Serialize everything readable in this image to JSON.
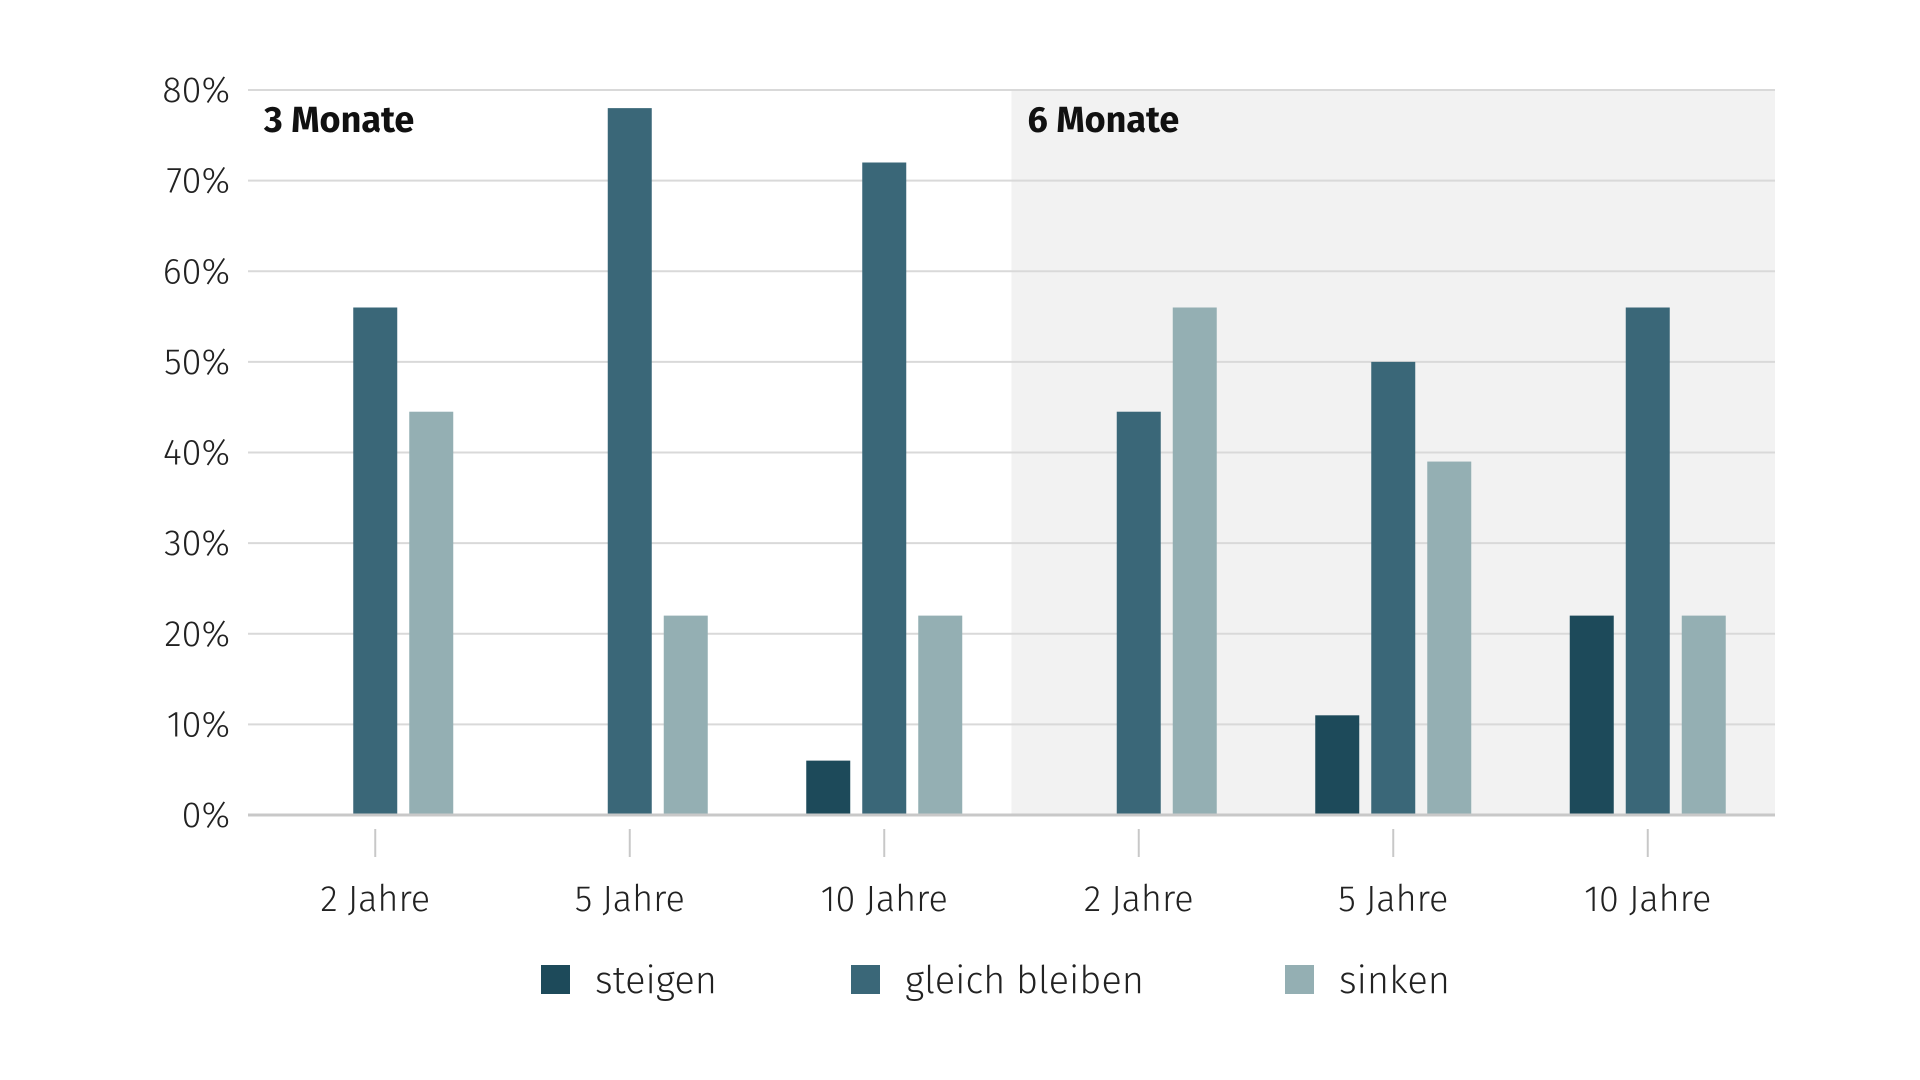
{
  "chart_data": {
    "type": "bar",
    "panels": [
      {
        "label": "3 Monate",
        "categories": [
          "2 Jahre",
          "5 Jahre",
          "10 Jahre"
        ],
        "series": [
          {
            "name": "steigen",
            "values": [
              0,
              0,
              6
            ]
          },
          {
            "name": "gleich bleiben",
            "values": [
              56,
              78,
              72
            ]
          },
          {
            "name": "sinken",
            "values": [
              44.5,
              22,
              22
            ]
          }
        ]
      },
      {
        "label": "6 Monate",
        "categories": [
          "2 Jahre",
          "5 Jahre",
          "10 Jahre"
        ],
        "series": [
          {
            "name": "steigen",
            "values": [
              0,
              11,
              22
            ]
          },
          {
            "name": "gleich bleiben",
            "values": [
              44.5,
              50,
              56
            ]
          },
          {
            "name": "sinken",
            "values": [
              56,
              39,
              22
            ]
          }
        ]
      }
    ],
    "y_ticks": [
      "0%",
      "10%",
      "20%",
      "30%",
      "40%",
      "50%",
      "60%",
      "70%",
      "80%"
    ],
    "ylim": [
      0,
      80
    ],
    "grid": true,
    "legend": {
      "position": "bottom",
      "entries": [
        "steigen",
        "gleich bleiben",
        "sinken"
      ]
    },
    "colors": {
      "steigen": "#1d4a5a",
      "gleich bleiben": "#3a6778",
      "sinken": "#94afb3",
      "panel_shade": "#f2f2f2",
      "grid": "#d9d9d9",
      "axis": "#c8c8c8"
    }
  }
}
